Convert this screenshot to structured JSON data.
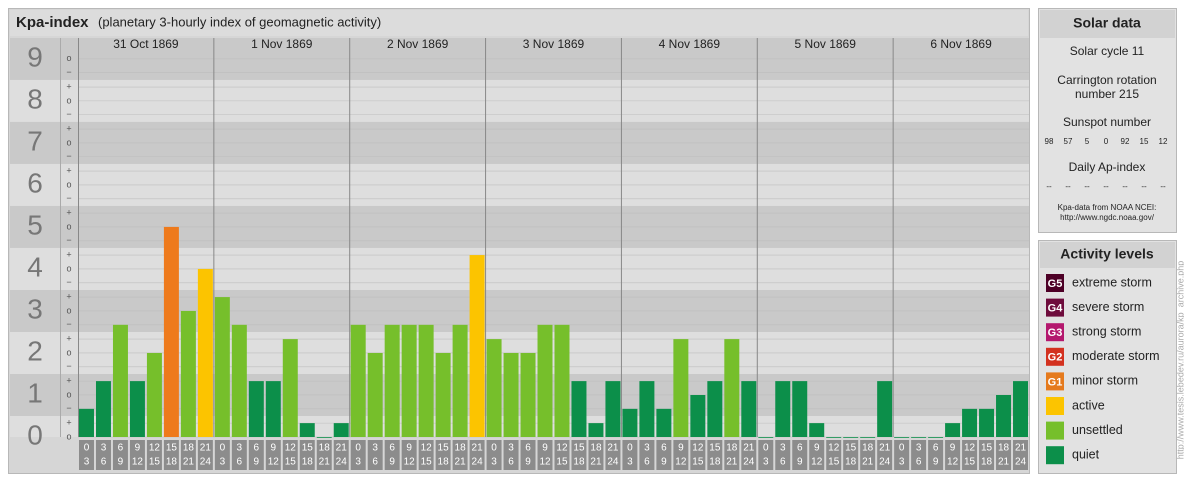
{
  "chart_data": {
    "type": "bar",
    "title": "Kpa-index",
    "subtitle": "(planetary 3-hourly index of geomagnetic activity)",
    "days": [
      "31 Oct 1869",
      "1 Nov 1869",
      "2 Nov 1869",
      "3 Nov 1869",
      "4 Nov 1869",
      "5 Nov 1869",
      "6 Nov 1869"
    ],
    "time_slots": [
      {
        "start": "0",
        "end": "3"
      },
      {
        "start": "3",
        "end": "6"
      },
      {
        "start": "6",
        "end": "9"
      },
      {
        "start": "9",
        "end": "12"
      },
      {
        "start": "12",
        "end": "15"
      },
      {
        "start": "15",
        "end": "18"
      },
      {
        "start": "18",
        "end": "21"
      },
      {
        "start": "21",
        "end": "24"
      }
    ],
    "values": [
      0.67,
      1.33,
      2.67,
      1.33,
      2,
      5,
      3,
      4,
      3.33,
      2.67,
      1.33,
      1.33,
      2.33,
      0.33,
      0,
      0.33,
      2.67,
      2,
      2.67,
      2.67,
      2.67,
      2,
      2.67,
      4.33,
      2.33,
      2,
      2,
      2.67,
      2.67,
      1.33,
      0.33,
      1.33,
      0.67,
      1.33,
      0.67,
      2.33,
      1,
      1.33,
      2.33,
      1.33,
      0,
      1.33,
      1.33,
      0.33,
      0,
      0,
      0,
      1.33,
      0,
      0,
      0,
      0.33,
      0.67,
      0.67,
      1,
      1.33
    ],
    "colors": [
      "#0c8f4a",
      "#0c8f4a",
      "#76bf2b",
      "#0c8f4a",
      "#76bf2b",
      "#ee7a1c",
      "#76bf2b",
      "#fcc400",
      "#76bf2b",
      "#76bf2b",
      "#0c8f4a",
      "#0c8f4a",
      "#76bf2b",
      "#0c8f4a",
      "#0c8f4a",
      "#0c8f4a",
      "#76bf2b",
      "#76bf2b",
      "#76bf2b",
      "#76bf2b",
      "#76bf2b",
      "#76bf2b",
      "#76bf2b",
      "#fcc400",
      "#76bf2b",
      "#76bf2b",
      "#76bf2b",
      "#76bf2b",
      "#76bf2b",
      "#0c8f4a",
      "#0c8f4a",
      "#0c8f4a",
      "#0c8f4a",
      "#0c8f4a",
      "#0c8f4a",
      "#76bf2b",
      "#0c8f4a",
      "#0c8f4a",
      "#76bf2b",
      "#0c8f4a",
      "#0c8f4a",
      "#0c8f4a",
      "#0c8f4a",
      "#0c8f4a",
      "#0c8f4a",
      "#0c8f4a",
      "#0c8f4a",
      "#0c8f4a",
      "#0c8f4a",
      "#0c8f4a",
      "#0c8f4a",
      "#0c8f4a",
      "#0c8f4a",
      "#0c8f4a",
      "#0c8f4a",
      "#0c8f4a"
    ],
    "ylim": [
      0,
      9.33
    ],
    "yticks": [
      0,
      1,
      2,
      3,
      4,
      5,
      6,
      7,
      8,
      9
    ],
    "minor_ticks": [
      {
        "value": 0,
        "label": "o"
      },
      {
        "value": 0.33,
        "label": "+"
      },
      {
        "value": 0.67,
        "label": "−"
      },
      {
        "value": 1,
        "label": "o"
      },
      {
        "value": 1.33,
        "label": "+"
      },
      {
        "value": 1.67,
        "label": "−"
      },
      {
        "value": 2,
        "label": "o"
      },
      {
        "value": 2.33,
        "label": "+"
      },
      {
        "value": 2.67,
        "label": "−"
      },
      {
        "value": 3,
        "label": "o"
      },
      {
        "value": 3.33,
        "label": "+"
      },
      {
        "value": 3.67,
        "label": "−"
      },
      {
        "value": 4,
        "label": "o"
      },
      {
        "value": 4.33,
        "label": "+"
      },
      {
        "value": 4.67,
        "label": "−"
      },
      {
        "value": 5,
        "label": "o"
      },
      {
        "value": 5.33,
        "label": "+"
      },
      {
        "value": 5.67,
        "label": "−"
      },
      {
        "value": 6,
        "label": "o"
      },
      {
        "value": 6.33,
        "label": "+"
      },
      {
        "value": 6.67,
        "label": "−"
      },
      {
        "value": 7,
        "label": "o"
      },
      {
        "value": 7.33,
        "label": "+"
      },
      {
        "value": 7.67,
        "label": "−"
      },
      {
        "value": 8,
        "label": "o"
      },
      {
        "value": 8.33,
        "label": "+"
      },
      {
        "value": 8.67,
        "label": "−"
      },
      {
        "value": 9,
        "label": "o"
      }
    ],
    "grid": true
  },
  "solar_data": {
    "title": "Solar data",
    "cycle": "Solar cycle 11",
    "carrington": [
      "Carrington rotation",
      "number 215"
    ],
    "sunspot_title": "Sunspot number",
    "sunspot_numbers": [
      98,
      57,
      5,
      0,
      92,
      15,
      12
    ],
    "ap_title": "Daily Ap-index",
    "ap_values": [
      "--",
      "--",
      "--",
      "--",
      "--",
      "--",
      "--"
    ],
    "source": [
      "Kpa-data from NOAA NCEI:",
      "http://www.ngdc.noaa.gov/"
    ]
  },
  "activity_levels": {
    "title": "Activity levels",
    "items": [
      {
        "code": "G5",
        "label": "extreme storm",
        "color": "#4d0026"
      },
      {
        "code": "G4",
        "label": "severe storm",
        "color": "#6e0c3c"
      },
      {
        "code": "G3",
        "label": "strong storm",
        "color": "#b4186e"
      },
      {
        "code": "G2",
        "label": "moderate storm",
        "color": "#d3311f"
      },
      {
        "code": "G1",
        "label": "minor storm",
        "color": "#e57a1d"
      },
      {
        "code": "",
        "label": "active",
        "color": "#fcc400"
      },
      {
        "code": "",
        "label": "unsettled",
        "color": "#76bf2b"
      },
      {
        "code": "",
        "label": "quiet",
        "color": "#0c8f4a"
      }
    ]
  },
  "watermark": "http://www.tesis.lebedev.ru/aurora/kp_archive.php"
}
